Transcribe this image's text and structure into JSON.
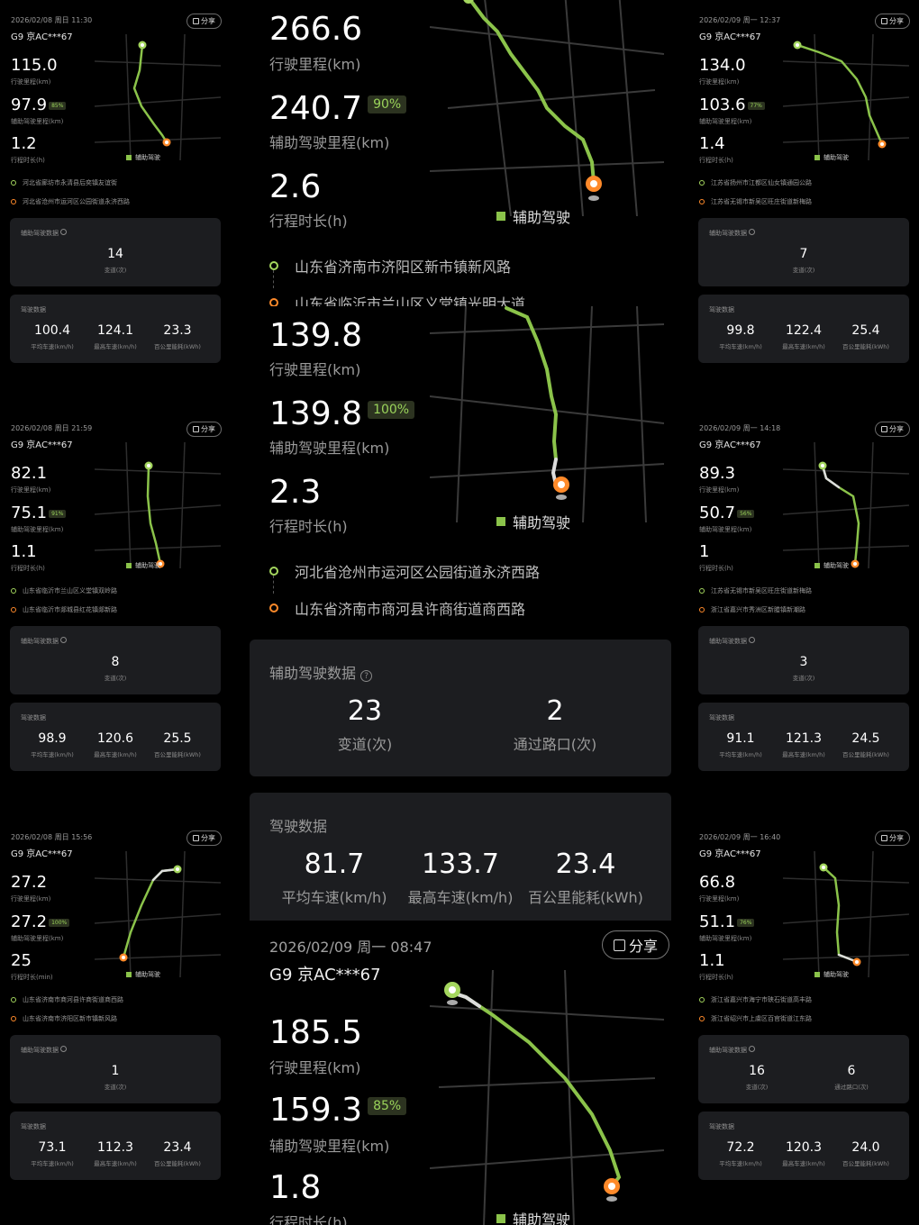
{
  "labels": {
    "mileage_km": "行驶里程(km)",
    "assist_km": "辅助驾驶里程(km)",
    "duration_h": "行程时长(h)",
    "duration_min": "行程时长(min)",
    "assist_legend": "辅助驾驶",
    "assist_data": "辅助驾驶数据",
    "drive_data": "驾驶数据",
    "lane_change": "变道(次)",
    "intersection": "通过路口(次)",
    "avg_speed": "平均车速(km/h)",
    "max_speed": "最高车速(km/h)",
    "energy": "百公里能耗(kWh)",
    "share": "分享",
    "car": "G9 京AC***67"
  },
  "left_trips": [
    {
      "date": "2026/02/08 周日 11:30",
      "mileage": "115.0",
      "assist": "97.9",
      "pct": "85%",
      "duration": "1.2",
      "from": "河北省廊坊市永清县后奕镇友谊街",
      "to": "河北省沧州市运河区公园街道永济西路",
      "lane": "14",
      "avg": "100.4",
      "max": "124.1",
      "energy": "23.3"
    },
    {
      "date": "2026/02/08 周日 21:59",
      "mileage": "82.1",
      "assist": "75.1",
      "pct": "91%",
      "duration": "1.1",
      "from": "山东省临沂市兰山区义堂镇双岭路",
      "to": "山东省临沂市郯城县红花镇郯新路",
      "lane": "8",
      "avg": "98.9",
      "max": "120.6",
      "energy": "25.5"
    },
    {
      "date": "2026/02/08 周日 15:56",
      "mileage": "27.2",
      "assist": "27.2",
      "pct": "100%",
      "duration": "25",
      "from": "山东省济南市商河县许商街道商西路",
      "to": "山东省济南市济阳区新市镇新风路",
      "lane": "1",
      "avg": "73.1",
      "max": "112.3",
      "energy": "23.4"
    }
  ],
  "right_trips": [
    {
      "date": "2026/02/09 周一 12:37",
      "mileage": "134.0",
      "assist": "103.6",
      "pct": "77%",
      "duration": "1.4",
      "from": "江苏省扬州市江都区仙女镇通园公路",
      "to": "江苏省无锡市新吴区旺庄街道新梅路",
      "lane": "7",
      "avg": "99.8",
      "max": "122.4",
      "energy": "25.4"
    },
    {
      "date": "2026/02/09 周一 14:18",
      "mileage": "89.3",
      "assist": "50.7",
      "pct": "56%",
      "duration": "1",
      "from": "江苏省无锡市新吴区旺庄街道新梅路",
      "to": "浙江省嘉兴市秀洲区新塍镇新潮路",
      "lane": "3",
      "avg": "91.1",
      "max": "121.3",
      "energy": "24.5"
    },
    {
      "date": "2026/02/09 周一 16:40",
      "mileage": "66.8",
      "assist": "51.1",
      "pct": "76%",
      "duration": "1.1",
      "from": "浙江省嘉兴市海宁市硖石街道高丰路",
      "to": "浙江省绍兴市上虞区百官街道江东路",
      "lane": "16",
      "intersection": "6",
      "avg": "72.2",
      "max": "120.3",
      "energy": "24.0"
    }
  ],
  "center": {
    "trip1": {
      "mileage": "266.6",
      "assist": "240.7",
      "pct": "90%",
      "duration": "2.6",
      "from": "山东省济南市济阳区新市镇新风路",
      "to": "山东省临沂市兰山区义堂镇光明大道"
    },
    "trip2": {
      "mileage": "139.8",
      "assist": "139.8",
      "pct": "100%",
      "duration": "2.3",
      "from": "河北省沧州市运河区公园街道永济西路",
      "to": "山东省济南市商河县许商街道商西路",
      "lane": "23",
      "intersection": "2",
      "avg": "81.7",
      "max": "133.7",
      "energy": "23.4"
    },
    "trip3": {
      "date": "2026/02/09 周一 08:47",
      "mileage": "185.5",
      "assist": "159.3",
      "pct": "85%",
      "duration": "1.8"
    }
  },
  "colors": {
    "route": "#8bc34a",
    "start": "#a4d65e",
    "end": "#ff8a2a",
    "card": "#1c1d20"
  },
  "icons": [
    "share-icon",
    "help-icon",
    "start-pin-icon",
    "end-pin-icon"
  ]
}
